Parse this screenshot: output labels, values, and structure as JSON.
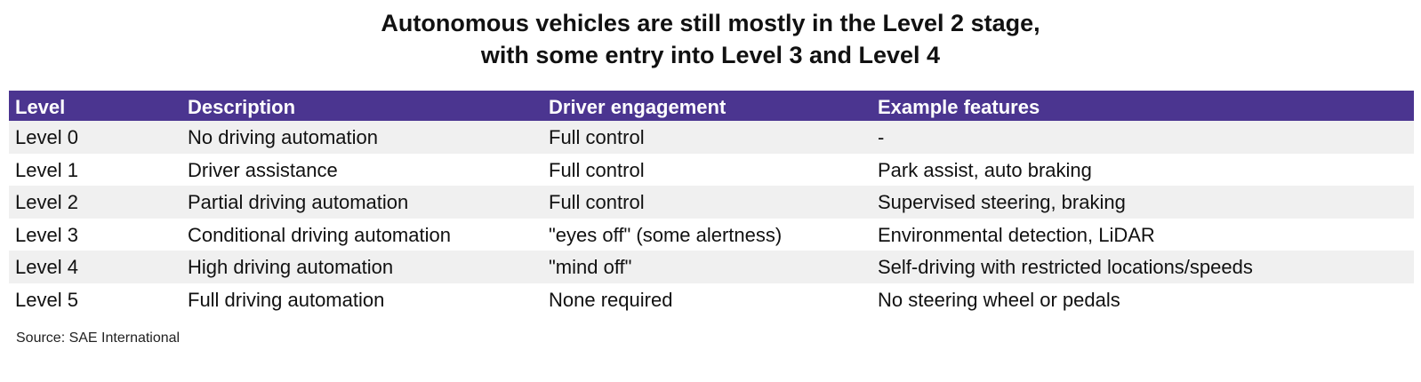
{
  "title": {
    "line1": "Autonomous vehicles are still mostly in the Level 2 stage,",
    "line2": "with some entry into Level 3 and Level 4"
  },
  "table": {
    "header_color": "#4b3590",
    "columns": [
      "Level",
      "Description",
      "Driver engagement",
      "Example features"
    ],
    "rows": [
      [
        "Level 0",
        "No driving automation",
        "Full control",
        "-"
      ],
      [
        "Level 1",
        "Driver assistance",
        "Full control",
        "Park assist, auto braking"
      ],
      [
        "Level 2",
        "Partial driving automation",
        "Full control",
        "Supervised steering, braking"
      ],
      [
        "Level 3",
        "Conditional driving automation",
        "\"eyes off\" (some alertness)",
        "Environmental detection, LiDAR"
      ],
      [
        "Level 4",
        "High driving automation",
        "\"mind off\"",
        "Self-driving with restricted locations/speeds"
      ],
      [
        "Level 5",
        "Full driving automation",
        "None required",
        "No steering wheel or pedals"
      ]
    ]
  },
  "source": "Source: SAE International"
}
